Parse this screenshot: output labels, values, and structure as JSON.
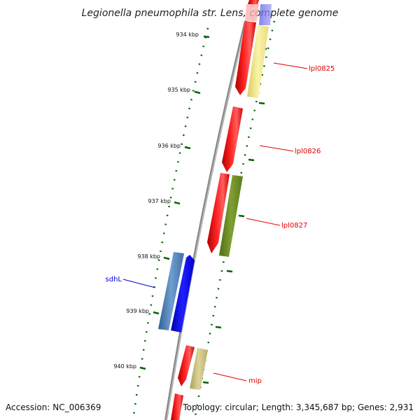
{
  "title": "Legionella pneumophila str. Lens, complete genome",
  "footer": {
    "accession": "Accession: NC_006369",
    "summary": "Topology: circular; Length: 3,345,687 bp; Genes: 2,931"
  },
  "ticks": [
    "934 kbp",
    "935 kbp",
    "936 kbp",
    "937 kbp",
    "938 kbp",
    "939 kbp",
    "940 kbp"
  ],
  "gene_labels": [
    {
      "text": "lpl0825",
      "color": "#e00000"
    },
    {
      "text": "lpl0826",
      "color": "#e00000"
    },
    {
      "text": "lpl0827",
      "color": "#e00000"
    },
    {
      "text": "sdhL",
      "color": "#0000d0"
    },
    {
      "text": "mip",
      "color": "#e00000"
    }
  ],
  "colors": {
    "backbone": "#8a8a8a",
    "cds": "#ff0000",
    "tick": "#006400",
    "yellow_feature": "#f2e88a",
    "olive_feature": "#6b8e23",
    "tan_feature": "#c8bd78",
    "steel_feature": "#4f7fb5",
    "blue_feature": "#0000ee",
    "lavender_feature": "#8080ff"
  }
}
